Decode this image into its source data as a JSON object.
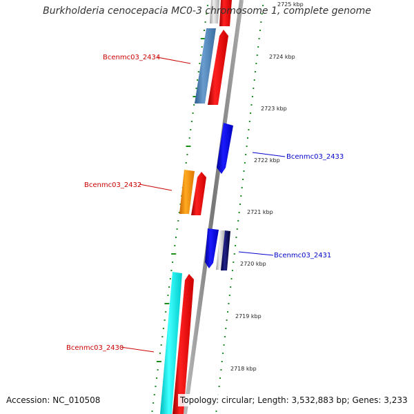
{
  "title": "Burkholderia cenocepacia MC0-3 chromosome 1, complete genome",
  "accession_text": "Accession: NC_010508",
  "summary_text": "Topology: circular; Length: 3,532,883 bp; Genes: 3,233",
  "colors": {
    "forward_gene": "#ff0000",
    "reverse_gene_blue": "#0000ee",
    "gene_cyan": "#00ffff",
    "gene_orange": "#ff9900",
    "gene_steelblue": "#4f81bd",
    "gene_gray": "#c8c8c8",
    "backbone": "#888888",
    "tick": "#1a8c1a",
    "label_red": "#cc0000",
    "label_blue": "#0000cc"
  },
  "scale_labels": [
    "2725 kbp",
    "2724 kbp",
    "2723 kbp",
    "2722 kbp",
    "2721 kbp",
    "2720 kbp",
    "2719 kbp",
    "2718 kbp"
  ],
  "gene_labels": [
    {
      "text": "Bcenmc03_2434",
      "strand": "forward"
    },
    {
      "text": "Bcenmc03_2433",
      "strand": "reverse"
    },
    {
      "text": "Bcenmc03_2432",
      "strand": "forward"
    },
    {
      "text": "Bcenmc03_2431",
      "strand": "reverse"
    },
    {
      "text": "Bcenmc03_2430",
      "strand": "forward"
    }
  ]
}
